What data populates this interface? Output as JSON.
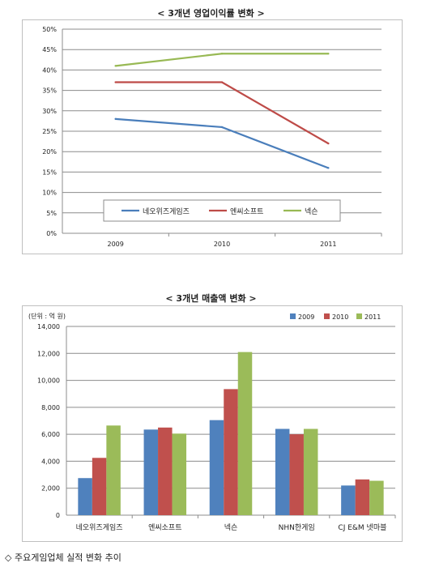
{
  "caption": "◇ 주요게임업체 실적 변화 추이",
  "chart_data": [
    {
      "type": "line",
      "title": "< 3개년 영업이익률 변화 >",
      "categories": [
        "2009",
        "2010",
        "2011"
      ],
      "yticks": [
        "0%",
        "5%",
        "10%",
        "15%",
        "20%",
        "25%",
        "30%",
        "35%",
        "40%",
        "45%",
        "50%"
      ],
      "ylim": [
        0,
        50
      ],
      "grid": true,
      "legend_position": "bottom-inside",
      "series": [
        {
          "name": "네오위즈게임즈",
          "color": "#4a7ebb",
          "values": [
            28,
            26,
            16
          ]
        },
        {
          "name": "엔씨소프트",
          "color": "#be4b48",
          "values": [
            37,
            37,
            22
          ]
        },
        {
          "name": "넥슨",
          "color": "#98b954",
          "values": [
            41,
            44,
            44
          ]
        }
      ]
    },
    {
      "type": "bar",
      "title": "< 3개년 매출액 변화 >",
      "unit_label": "(단위 : 억 원)",
      "categories": [
        "네오위즈게임즈",
        "엔씨소프트",
        "넥슨",
        "NHN한게임",
        "CJ E&M 넷마블"
      ],
      "yticks": [
        "0",
        "2,000",
        "4,000",
        "6,000",
        "8,000",
        "10,000",
        "12,000",
        "14,000"
      ],
      "ylim": [
        0,
        14000
      ],
      "grid": true,
      "legend_position": "top-right",
      "series": [
        {
          "name": "2009",
          "color": "#4f81bd",
          "values": [
            2750,
            6350,
            7050,
            6400,
            2200
          ]
        },
        {
          "name": "2010",
          "color": "#c0504d",
          "values": [
            4250,
            6500,
            9350,
            6000,
            2650
          ]
        },
        {
          "name": "2011",
          "color": "#9bbb59",
          "values": [
            6650,
            6050,
            12100,
            6400,
            2550
          ]
        }
      ]
    }
  ]
}
